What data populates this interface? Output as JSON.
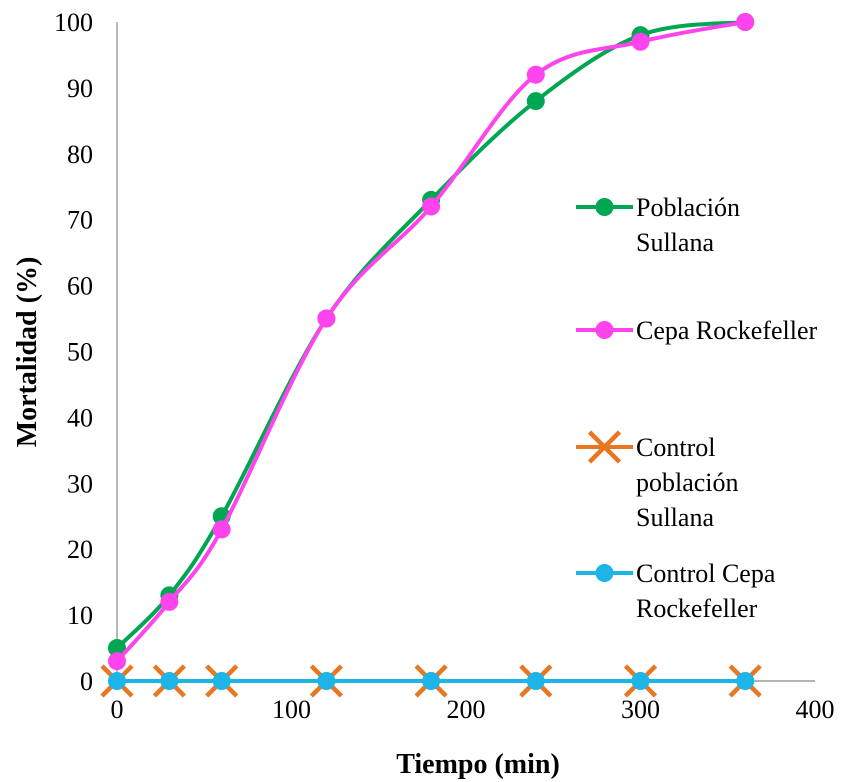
{
  "chart_data": {
    "type": "line",
    "xlabel": "Tiempo (min)",
    "ylabel": "Mortalidad (%)",
    "xlim": [
      0,
      400
    ],
    "ylim": [
      0,
      100
    ],
    "xticks": [
      0,
      100,
      200,
      300,
      400
    ],
    "yticks": [
      0,
      10,
      20,
      30,
      40,
      50,
      60,
      70,
      80,
      90,
      100
    ],
    "grid": false,
    "legend_position": "right",
    "series": [
      {
        "name": "Población Sullana",
        "name_lines": [
          "Población",
          "Sullana"
        ],
        "color": "#00A651",
        "marker": "circle",
        "x": [
          0,
          30,
          60,
          120,
          180,
          240,
          300,
          360
        ],
        "y": [
          5,
          13,
          25,
          55,
          73,
          88,
          98,
          100
        ]
      },
      {
        "name": "Cepa Rockefeller",
        "name_lines": [
          "Cepa Rockefeller"
        ],
        "color": "#FF44EE",
        "marker": "circle",
        "x": [
          0,
          30,
          60,
          120,
          180,
          240,
          300,
          360
        ],
        "y": [
          3,
          12,
          23,
          55,
          72,
          92,
          97,
          100
        ]
      },
      {
        "name": "Control población Sullana",
        "name_lines": [
          "Control",
          "población",
          "Sullana"
        ],
        "color": "#E87722",
        "marker": "x",
        "x": [
          0,
          30,
          60,
          120,
          180,
          240,
          300,
          360
        ],
        "y": [
          0,
          0,
          0,
          0,
          0,
          0,
          0,
          0
        ]
      },
      {
        "name": "Control Cepa Rockefeller",
        "name_lines": [
          "Control Cepa",
          "Rockefeller"
        ],
        "color": "#1EB4E8",
        "marker": "circle",
        "x": [
          0,
          30,
          60,
          120,
          180,
          240,
          300,
          360
        ],
        "y": [
          0,
          0,
          0,
          0,
          0,
          0,
          0,
          0
        ]
      }
    ]
  }
}
